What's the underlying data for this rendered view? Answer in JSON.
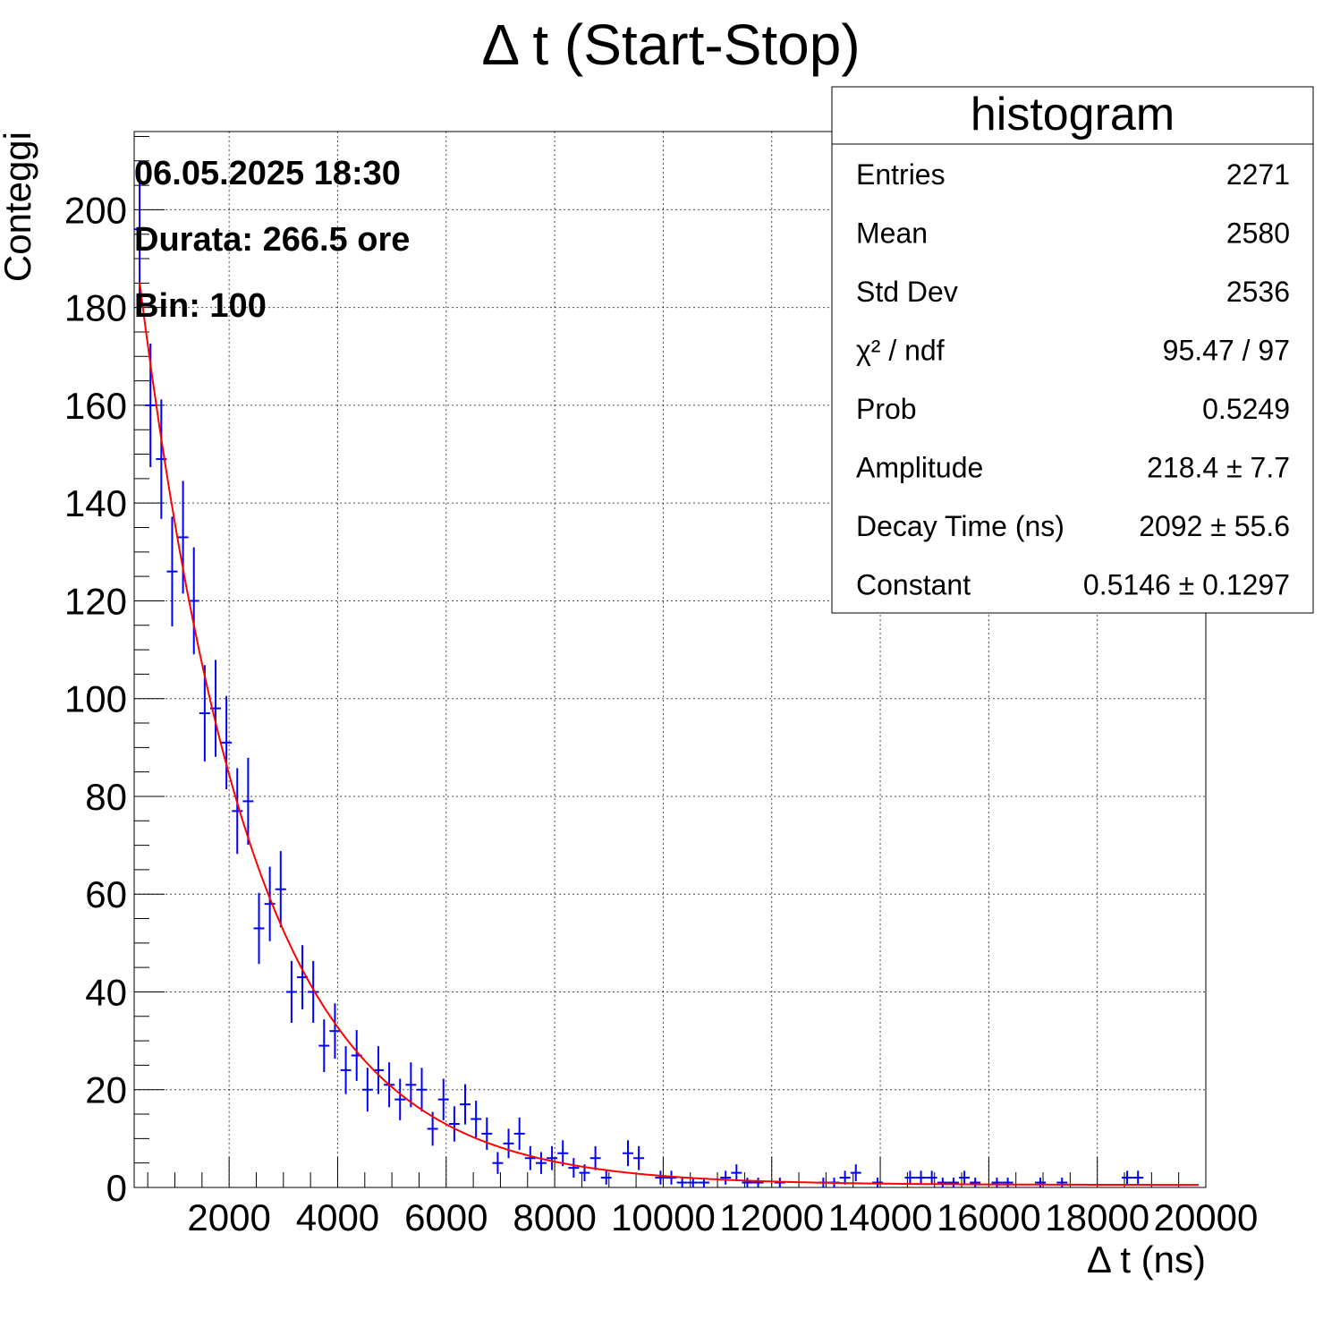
{
  "chart_data": {
    "type": "scatter",
    "title": "Δ t (Start-Stop)",
    "xlabel": "Δ t (ns)",
    "ylabel": "Conteggi",
    "xlim": [
      250,
      20000
    ],
    "ylim": [
      0,
      216
    ],
    "grid": true,
    "x_ticks": [
      2000,
      4000,
      6000,
      8000,
      10000,
      12000,
      14000,
      16000,
      18000,
      20000
    ],
    "y_ticks": [
      0,
      20,
      40,
      60,
      80,
      100,
      120,
      140,
      160,
      180,
      200
    ],
    "bin_width": 197.5,
    "annotations": [
      "06.05.2025 18:30",
      "Durata: 266.5 ore",
      "Bin: 100"
    ],
    "series": [
      {
        "kind": "histogram-points",
        "color": "#0000ff",
        "x": [
          350,
          550,
          750,
          950,
          1150,
          1350,
          1550,
          1750,
          1950,
          2150,
          2350,
          2550,
          2750,
          2950,
          3150,
          3350,
          3550,
          3750,
          3950,
          4150,
          4350,
          4550,
          4750,
          4950,
          5150,
          5350,
          5550,
          5750,
          5950,
          6150,
          6350,
          6550,
          6750,
          6950,
          7150,
          7350,
          7550,
          7750,
          7950,
          8150,
          8350,
          8550,
          8750,
          8950,
          9350,
          9550,
          9950,
          10150,
          10350,
          10550,
          10750,
          11150,
          11350,
          11550,
          11750,
          12150,
          12950,
          13150,
          13350,
          13550,
          13950,
          14550,
          14750,
          14950,
          15150,
          15350,
          15550,
          15750,
          16150,
          16350,
          16950,
          17350,
          18550,
          18750
        ],
        "y": [
          196,
          160,
          149,
          126,
          133,
          120,
          97,
          98,
          91,
          77,
          79,
          53,
          58,
          61,
          40,
          43,
          40,
          29,
          32,
          24,
          27,
          20,
          24,
          21,
          18,
          21,
          20,
          12,
          18,
          13,
          17,
          14,
          11,
          5,
          9,
          11,
          6,
          5,
          6,
          7,
          4,
          3,
          6,
          2,
          7,
          6,
          2,
          2,
          1,
          1,
          1,
          2,
          3,
          1,
          1,
          1,
          1,
          1,
          2,
          3,
          1,
          2,
          2,
          2,
          1,
          1,
          2,
          1,
          1,
          1,
          1,
          1,
          2,
          2
        ]
      },
      {
        "kind": "fit-curve",
        "name": "fit",
        "color": "#ff0000",
        "model": "Amplitude * exp(-x / Decay Time) + Constant",
        "amplitude": 218.4,
        "decay_time": 2092,
        "constant": 0.5146,
        "x_range": [
          350,
          19900
        ]
      }
    ],
    "stats_box": {
      "header": "histogram",
      "rows": [
        {
          "label": "Entries",
          "value": "2271"
        },
        {
          "label": "Mean",
          "value": "2580"
        },
        {
          "label": "Std Dev",
          "value": "2536"
        },
        {
          "label": "χ² / ndf",
          "value": "95.47 / 97"
        },
        {
          "label": "Prob",
          "value": "0.5249"
        },
        {
          "label": "Amplitude",
          "value": "218.4 ± 7.7"
        },
        {
          "label": "Decay Time (ns)",
          "value": "2092 ± 55.6"
        },
        {
          "label": "Constant",
          "value": "0.5146 ± 0.1297"
        }
      ]
    }
  }
}
